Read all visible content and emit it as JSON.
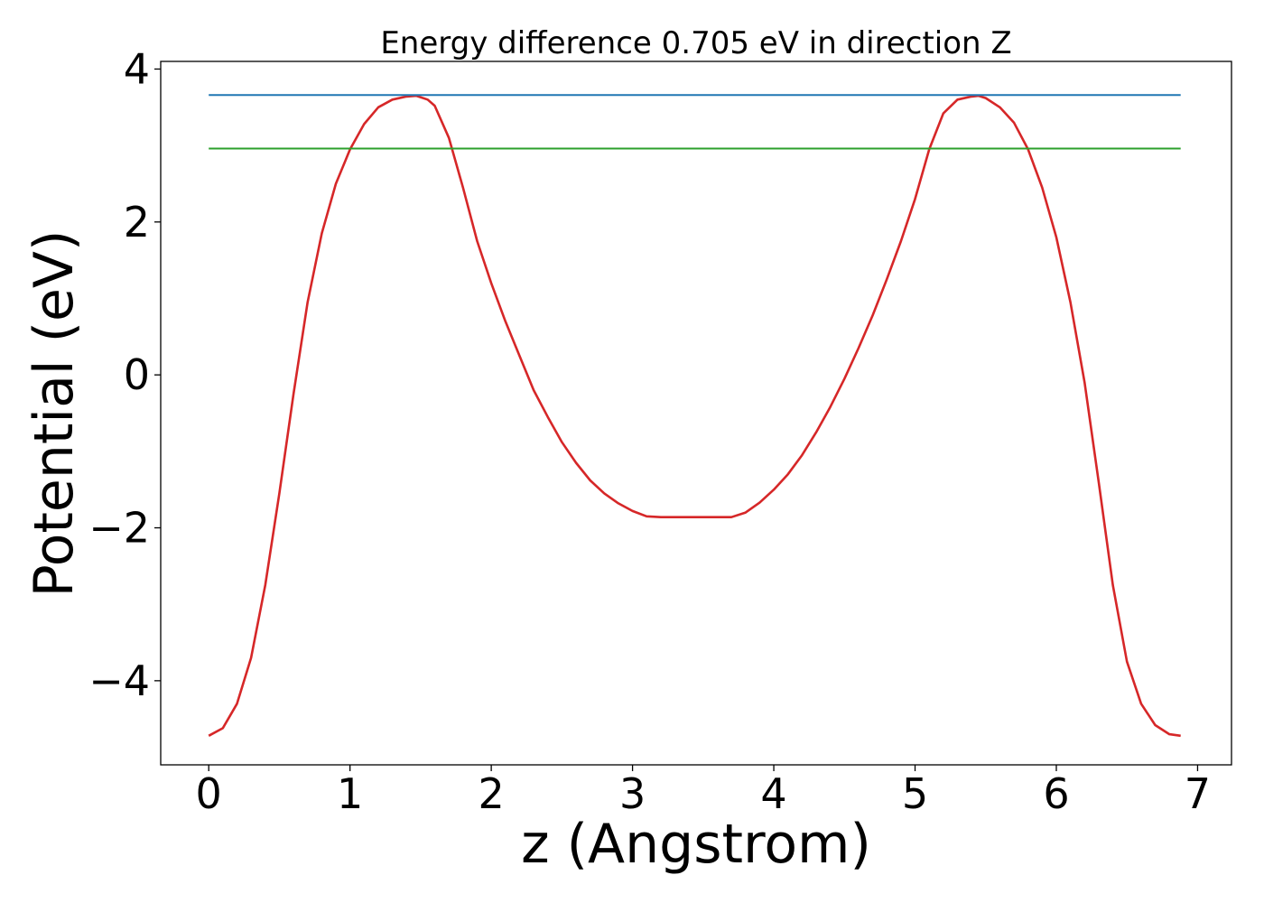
{
  "chart_data": {
    "type": "line",
    "title": "Energy difference 0.705 eV in direction Z",
    "xlabel": "z (Angstrom)",
    "ylabel": "Potential (eV)",
    "xlim": [
      -0.34,
      7.24
    ],
    "ylim": [
      -5.1,
      4.1
    ],
    "x_ticks": [
      0,
      1,
      2,
      3,
      4,
      5,
      6,
      7
    ],
    "x_tick_labels": [
      "0",
      "1",
      "2",
      "3",
      "4",
      "5",
      "6",
      "7"
    ],
    "y_ticks": [
      -4,
      -2,
      0,
      2,
      4
    ],
    "y_tick_labels": [
      "−4",
      "−2",
      "0",
      "2",
      "4"
    ],
    "grid": false,
    "series": [
      {
        "color": "#d62728",
        "x": [
          0,
          0.1,
          0.2,
          0.3,
          0.4,
          0.5,
          0.6,
          0.7,
          0.8,
          0.9,
          1.0,
          1.1,
          1.2,
          1.3,
          1.4,
          1.47,
          1.55,
          1.6,
          1.7,
          1.8,
          1.9,
          2.0,
          2.1,
          2.2,
          2.3,
          2.4,
          2.5,
          2.6,
          2.7,
          2.8,
          2.9,
          3.0,
          3.1,
          3.2,
          3.3,
          3.4,
          3.5,
          3.6,
          3.7,
          3.8,
          3.9,
          4.0,
          4.1,
          4.2,
          4.3,
          4.4,
          4.5,
          4.6,
          4.7,
          4.8,
          4.9,
          5.0,
          5.1,
          5.2,
          5.3,
          5.4,
          5.45,
          5.5,
          5.6,
          5.7,
          5.8,
          5.9,
          6.0,
          6.1,
          6.2,
          6.3,
          6.4,
          6.5,
          6.6,
          6.7,
          6.8,
          6.88
        ],
        "y": [
          -4.72,
          -4.62,
          -4.3,
          -3.7,
          -2.75,
          -1.55,
          -0.25,
          0.95,
          1.85,
          2.5,
          2.95,
          3.28,
          3.5,
          3.6,
          3.64,
          3.65,
          3.6,
          3.52,
          3.1,
          2.45,
          1.75,
          1.2,
          0.7,
          0.25,
          -0.2,
          -0.55,
          -0.88,
          -1.15,
          -1.38,
          -1.55,
          -1.68,
          -1.78,
          -1.85,
          -1.86,
          -1.86,
          -1.86,
          -1.86,
          -1.86,
          -1.86,
          -1.8,
          -1.67,
          -1.5,
          -1.3,
          -1.05,
          -0.75,
          -0.42,
          -0.05,
          0.35,
          0.78,
          1.25,
          1.75,
          2.3,
          2.95,
          3.42,
          3.6,
          3.64,
          3.65,
          3.62,
          3.5,
          3.3,
          2.95,
          2.45,
          1.8,
          0.95,
          -0.1,
          -1.4,
          -2.75,
          -3.75,
          -4.3,
          -4.58,
          -4.7,
          -4.72
        ]
      },
      {
        "color": "#1f77b4",
        "x": [
          0,
          6.88
        ],
        "y": [
          3.66,
          3.66
        ]
      },
      {
        "color": "#2ca02c",
        "x": [
          0,
          6.88
        ],
        "y": [
          2.96,
          2.96
        ]
      }
    ]
  }
}
